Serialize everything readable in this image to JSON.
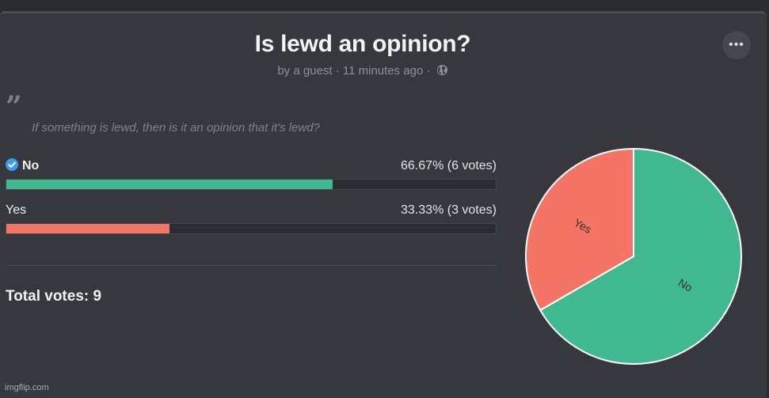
{
  "poll": {
    "title": "Is lewd an opinion?",
    "author": "by a guest",
    "separator": "·",
    "time": "11 minutes ago",
    "description": "If something is lewd, then is it an opinion that it's lewd?",
    "more_icon": "more-horizontal-icon",
    "privacy_icon": "globe-icon",
    "quote_icon": "quote-icon",
    "voted_icon": "check-circle-icon",
    "options": [
      {
        "label": "No",
        "percent_text": "66.67%",
        "votes_text": "(6 votes)",
        "percent": 66.67,
        "color": "#40b890",
        "voted": true
      },
      {
        "label": "Yes",
        "percent_text": "33.33%",
        "votes_text": "(3 votes)",
        "percent": 33.33,
        "color": "#f47565",
        "voted": false
      }
    ],
    "total_label": "Total votes:",
    "total_value": "9"
  },
  "chart_data": {
    "type": "pie",
    "categories": [
      "No",
      "Yes"
    ],
    "values": [
      6,
      3
    ],
    "colors": [
      "#40b890",
      "#f47565"
    ]
  },
  "watermark": "imgflip.com"
}
